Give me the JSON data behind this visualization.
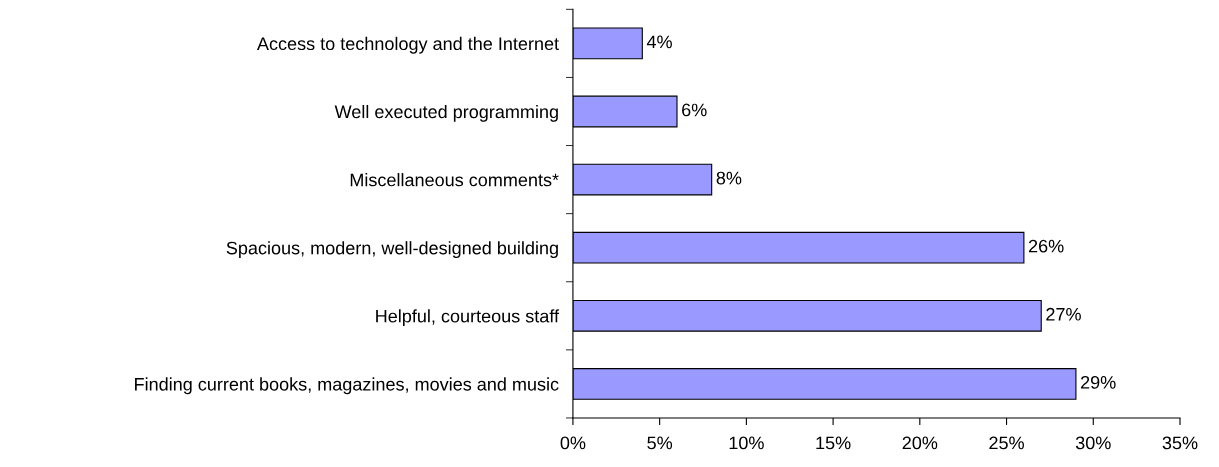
{
  "chart_data": {
    "type": "bar",
    "orientation": "horizontal",
    "categories": [
      "Access to technology and the Internet",
      "Well executed programming",
      "Miscellaneous comments*",
      "Spacious, modern, well-designed building",
      "Helpful, courteous staff",
      "Finding current books, magazines, movies and music"
    ],
    "values": [
      4,
      6,
      8,
      26,
      27,
      29
    ],
    "value_labels": [
      "4%",
      "6%",
      "8%",
      "26%",
      "27%",
      "29%"
    ],
    "color": "#9999ff",
    "xlim": [
      0,
      35
    ],
    "xticks": [
      {
        "value": 0,
        "label": "0%"
      },
      {
        "value": 5,
        "label": "5%"
      },
      {
        "value": 10,
        "label": "10%"
      },
      {
        "value": 15,
        "label": "15%"
      },
      {
        "value": 20,
        "label": "20%"
      },
      {
        "value": 25,
        "label": "25%"
      },
      {
        "value": 30,
        "label": "30%"
      },
      {
        "value": 35,
        "label": "35%"
      }
    ],
    "grid": false,
    "legend": false
  }
}
